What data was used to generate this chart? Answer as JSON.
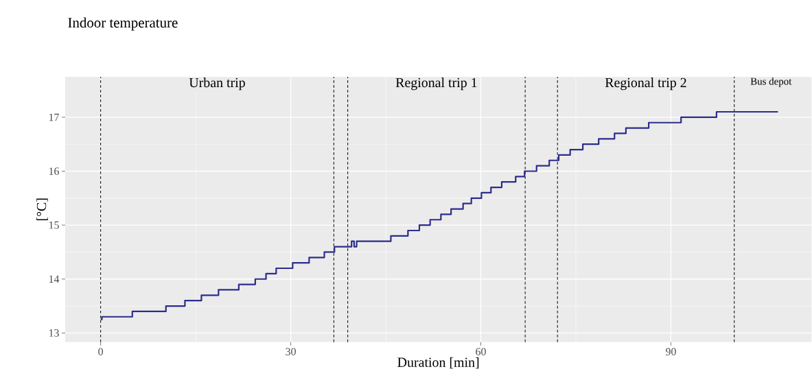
{
  "chart_data": {
    "type": "step",
    "title": "Indoor temperature",
    "xlabel": "Duration [min]",
    "ylabel": "[°C]",
    "x": [
      0,
      0.2,
      5,
      10.3,
      13.3,
      15.9,
      18.6,
      21.8,
      24.4,
      26.1,
      27.7,
      30.3,
      32.9,
      35.3,
      36.9,
      39.6,
      40.0,
      40.4,
      45.8,
      48.5,
      50.3,
      52,
      53.7,
      55.3,
      57.2,
      58.5,
      60.1,
      61.6,
      63.3,
      65.5,
      66.9,
      68.8,
      70.8,
      72.3,
      74.1,
      76.1,
      78.6,
      81.1,
      82.9,
      86.5,
      91.6,
      97.2,
      106.9
    ],
    "values": [
      13.25,
      13.3,
      13.4,
      13.5,
      13.6,
      13.7,
      13.8,
      13.9,
      14.0,
      14.1,
      14.2,
      14.3,
      14.4,
      14.5,
      14.6,
      14.7,
      14.6,
      14.7,
      14.8,
      14.9,
      15.0,
      15.1,
      15.2,
      15.3,
      15.4,
      15.5,
      15.6,
      15.7,
      15.8,
      15.9,
      16.0,
      16.1,
      16.2,
      16.3,
      16.4,
      16.5,
      16.6,
      16.7,
      16.8,
      16.9,
      17.0,
      17.1,
      17.1
    ],
    "color": "#2b2d8c",
    "xlim": [
      -5.6,
      112.2
    ],
    "ylim": [
      12.83,
      17.75
    ],
    "xticks": [
      0,
      30,
      60,
      90
    ],
    "yticks": [
      13,
      14,
      15,
      16,
      17
    ],
    "grid": true,
    "ref_lines": [
      {
        "axis": "x",
        "value": 0,
        "line_style": "dashed",
        "color": "#000000"
      },
      {
        "axis": "x",
        "value": 36.8,
        "line_style": "dashed",
        "color": "#000000"
      },
      {
        "axis": "x",
        "value": 39.0,
        "line_style": "dashed",
        "color": "#000000"
      },
      {
        "axis": "x",
        "value": 67.0,
        "line_style": "dashed",
        "color": "#000000"
      },
      {
        "axis": "x",
        "value": 72.1,
        "line_style": "dashed",
        "color": "#000000"
      },
      {
        "axis": "x",
        "value": 100.0,
        "line_style": "dashed",
        "color": "#000000"
      }
    ],
    "annotations": [
      "Urban trip",
      "Regional trip 1",
      "Regional trip 2",
      "Bus depot"
    ]
  }
}
